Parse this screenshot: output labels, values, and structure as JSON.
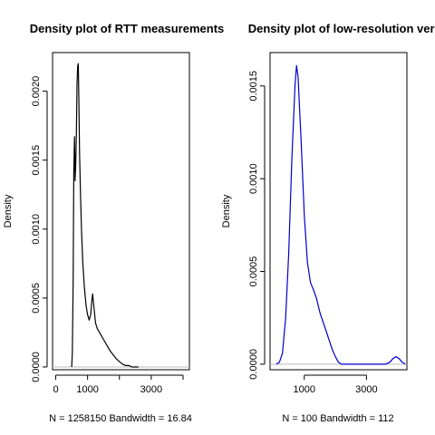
{
  "chart_data": [
    {
      "type": "line",
      "title": "Density plot of RTT measurements",
      "xlabel": "N = 1258150   Bandwidth = 16.84",
      "ylabel": "Density",
      "xlim": [
        -100,
        4200
      ],
      "ylim": [
        -2e-05,
        0.00228
      ],
      "x_ticks": [
        0,
        1000,
        2000,
        3000,
        4000
      ],
      "x_tick_labels": [
        "0",
        "1000",
        "",
        "3000",
        ""
      ],
      "y_ticks": [
        0.0,
        0.0005,
        0.001,
        0.0015,
        0.002
      ],
      "y_tick_labels": [
        "0.0000",
        "0.0005",
        "0.0010",
        "0.0015",
        "0.0020"
      ],
      "line_color": "#000000",
      "baseline_color": "#bebebe",
      "series": [
        {
          "x": [
            500,
            520,
            545,
            565,
            590,
            610,
            630,
            650,
            670,
            690,
            710,
            730,
            750,
            780,
            810,
            850,
            900,
            950,
            1000,
            1050,
            1100,
            1130,
            1160,
            1200,
            1250,
            1300,
            1400,
            1500,
            1600,
            1700,
            1800,
            1900,
            2000,
            2100,
            2200,
            2300,
            2400,
            2600
          ],
          "y": [
            0.0,
            0.0001,
            0.0006,
            0.0014,
            0.00167,
            0.00135,
            0.00148,
            0.0017,
            0.00205,
            0.00218,
            0.0022,
            0.0019,
            0.00155,
            0.00123,
            0.00098,
            0.00075,
            0.00058,
            0.00045,
            0.00038,
            0.00034,
            0.00038,
            0.00047,
            0.00053,
            0.00043,
            0.00032,
            0.00028,
            0.00024,
            0.0002,
            0.00016,
            0.00012,
            9e-05,
            6e-05,
            4e-05,
            2e-05,
            1e-05,
            1e-05,
            0.0,
            0.0
          ]
        }
      ]
    },
    {
      "type": "line",
      "title": "Density plot of low-resolution version",
      "xlabel": "N = 100   Bandwidth = 112",
      "ylabel": "Density",
      "xlim": [
        -100,
        4300
      ],
      "ylim": [
        -3e-05,
        0.00168
      ],
      "x_ticks": [
        1000,
        3000
      ],
      "x_tick_labels": [
        "1000",
        "3000"
      ],
      "y_ticks": [
        0.0,
        0.0005,
        0.001,
        0.0015
      ],
      "y_tick_labels": [
        "0.0000",
        "0.0005",
        "0.0010",
        "0.0015"
      ],
      "line_color": "#0000cd",
      "baseline_color": "#bebebe",
      "series": [
        {
          "x": [
            100,
            200,
            300,
            400,
            500,
            600,
            700,
            750,
            800,
            900,
            1000,
            1100,
            1200,
            1300,
            1400,
            1500,
            1600,
            1700,
            1800,
            1900,
            2000,
            2100,
            2200,
            2300,
            2500,
            2800,
            3100,
            3400,
            3600,
            3750,
            3850,
            3950,
            4050,
            4150,
            4250
          ],
          "y": [
            0.0,
            1e-05,
            6e-05,
            0.00025,
            0.0006,
            0.0011,
            0.0015,
            0.00161,
            0.00155,
            0.0012,
            0.0008,
            0.00055,
            0.00044,
            0.0004,
            0.00035,
            0.00028,
            0.00023,
            0.00018,
            0.00013,
            8e-05,
            4e-05,
            1e-05,
            0.0,
            0.0,
            0.0,
            0.0,
            0.0,
            0.0,
            0.0,
            1e-05,
            3e-05,
            4e-05,
            3e-05,
            1e-05,
            0.0
          ]
        }
      ]
    }
  ]
}
